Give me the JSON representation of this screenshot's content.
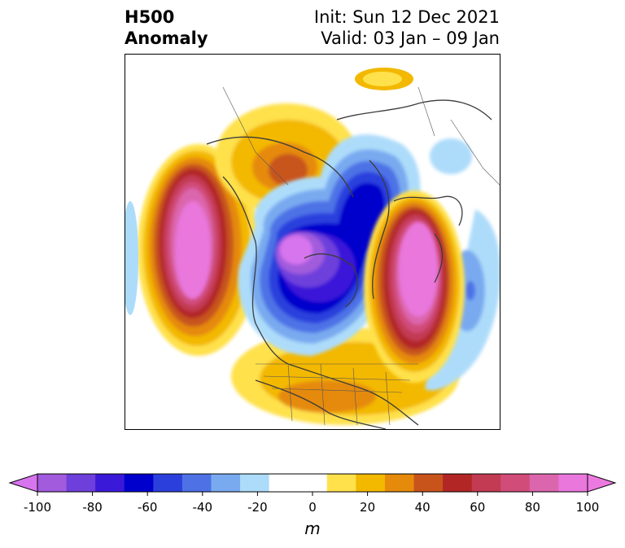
{
  "header": {
    "title_line1": "H500",
    "title_line2": "Anomaly",
    "init_text": "Init: Sun 12 Dec 2021",
    "valid_text": "Valid: 03 Jan – 09 Jan"
  },
  "colorbar": {
    "unit": "m",
    "ticks": [
      "-100",
      "-80",
      "-60",
      "-40",
      "-20",
      "0",
      "20",
      "40",
      "60",
      "80",
      "100"
    ],
    "levels": [
      -100,
      -90,
      -80,
      -70,
      -60,
      -50,
      -40,
      -30,
      -20,
      -10,
      10,
      20,
      30,
      40,
      50,
      60,
      70,
      80,
      90,
      100
    ],
    "colors": [
      "#a15bdc",
      "#6e3fdb",
      "#3b19d8",
      "#0000cc",
      "#2b3fdd",
      "#4e72e6",
      "#79aaf0",
      "#addcfa",
      "#ffffff",
      "#ffffff",
      "#ffe14b",
      "#f3b800",
      "#e58a0b",
      "#c8541c",
      "#b22625",
      "#c23b53",
      "#d24c7a",
      "#db66ad",
      "#e977dc"
    ],
    "extend_low_color": "#d775ee",
    "extend_high_color": "#ec79e0"
  },
  "map": {
    "projection": "north-polar-stereographic",
    "features": [
      "coastlines",
      "country-borders",
      "state-borders"
    ],
    "anomaly_centers": [
      {
        "region": "north-pacific",
        "sign": "positive",
        "peak": 100
      },
      {
        "region": "north-atlantic-europe",
        "sign": "positive",
        "peak": 100
      },
      {
        "region": "canada-arctic",
        "sign": "negative",
        "peak": -100
      },
      {
        "region": "siberia-arctic",
        "sign": "negative",
        "peak": -60
      },
      {
        "region": "southern-us",
        "sign": "positive",
        "peak": 40
      },
      {
        "region": "east-siberia",
        "sign": "positive",
        "peak": 50
      }
    ]
  }
}
